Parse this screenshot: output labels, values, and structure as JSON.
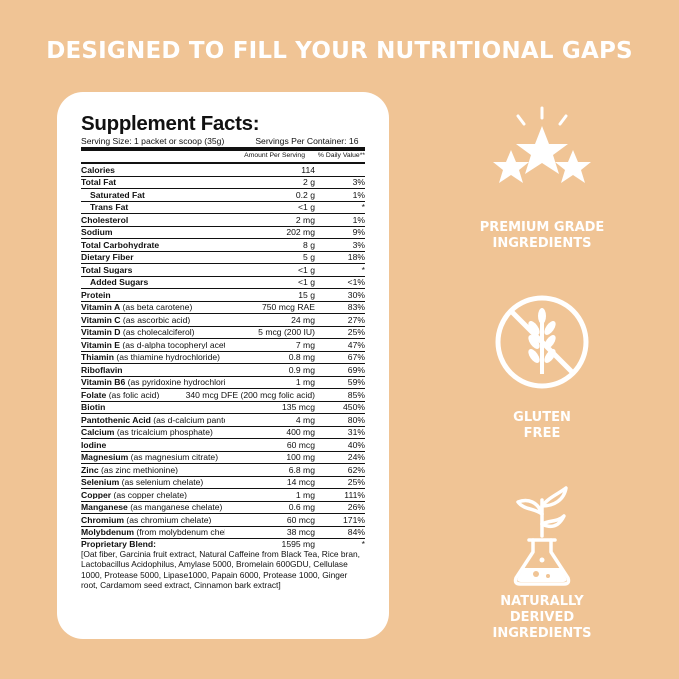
{
  "headline": "DESIGNED TO FILL YOUR NUTRITIONAL GAPS",
  "facts": {
    "title": "Supplement Facts:",
    "serving_size": "Serving Size: 1 packet or scoop (35g)",
    "servings_per_container": "Servings Per Container: 16",
    "col_amount": "Amount Per Serving",
    "col_dv": "% Daily Value**",
    "rows": [
      {
        "name": "Calories",
        "sub": "",
        "amount": "114",
        "dv": "",
        "bold": true,
        "indent": false,
        "amt_wide": false
      },
      {
        "name": "Total Fat",
        "sub": "",
        "amount": "2 g",
        "dv": "3%",
        "bold": true,
        "indent": false
      },
      {
        "name": "Saturated Fat",
        "sub": "",
        "amount": "0.2 g",
        "dv": "1%",
        "bold": true,
        "indent": true
      },
      {
        "name": "Trans Fat",
        "sub": "",
        "amount": "<1 g",
        "dv": "*",
        "bold": true,
        "indent": true
      },
      {
        "name": "Cholesterol",
        "sub": "",
        "amount": "2 mg",
        "dv": "1%",
        "bold": true,
        "indent": false
      },
      {
        "name": "Sodium",
        "sub": "",
        "amount": "202 mg",
        "dv": "9%",
        "bold": true,
        "indent": false
      },
      {
        "name": "Total Carbohydrate",
        "sub": "",
        "amount": "8 g",
        "dv": "3%",
        "bold": true,
        "indent": false
      },
      {
        "name": "Dietary Fiber",
        "sub": "",
        "amount": "5 g",
        "dv": "18%",
        "bold": true,
        "indent": false
      },
      {
        "name": "Total Sugars",
        "sub": "",
        "amount": "<1 g",
        "dv": "*",
        "bold": true,
        "indent": false
      },
      {
        "name": "Added Sugars",
        "sub": "",
        "amount": "<1 g",
        "dv": "<1%",
        "bold": true,
        "indent": true
      },
      {
        "name": "Protein",
        "sub": "",
        "amount": "15 g",
        "dv": "30%",
        "bold": true,
        "indent": false
      },
      {
        "name": "Vitamin A",
        "sub": " (as beta carotene)",
        "amount": "750 mcg RAE",
        "dv": "83%",
        "bold": true,
        "indent": false
      },
      {
        "name": "Vitamin C",
        "sub": " (as ascorbic acid)",
        "amount": "24 mg",
        "dv": "27%",
        "bold": true,
        "indent": false
      },
      {
        "name": "Vitamin D",
        "sub": " (as cholecalciferol)",
        "amount": "5 mcg (200 IU)",
        "dv": "25%",
        "bold": true,
        "indent": false
      },
      {
        "name": "Vitamin E",
        "sub": " (as d-alpha tocopheryl acetate)",
        "amount": "7 mg",
        "dv": "47%",
        "bold": true,
        "indent": false
      },
      {
        "name": "Thiamin",
        "sub": " (as thiamine hydrochloride)",
        "amount": "0.8 mg",
        "dv": "67%",
        "bold": true,
        "indent": false
      },
      {
        "name": "Riboflavin",
        "sub": "",
        "amount": "0.9 mg",
        "dv": "69%",
        "bold": true,
        "indent": false
      },
      {
        "name": "Vitamin B6",
        "sub": " (as pyridoxine hydrochloride)",
        "amount": "1 mg",
        "dv": "59%",
        "bold": true,
        "indent": false
      },
      {
        "name": "Folate",
        "sub": " (as folic acid)",
        "amount": "340 mcg DFE (200 mcg folic acid)",
        "dv": "85%",
        "bold": true,
        "indent": false
      },
      {
        "name": "Biotin",
        "sub": "",
        "amount": "135 mcg",
        "dv": "450%",
        "bold": true,
        "indent": false
      },
      {
        "name": "Pantothenic Acid",
        "sub": " (as d-calcium pantothenate)",
        "amount": "4 mg",
        "dv": "80%",
        "bold": true,
        "indent": false
      },
      {
        "name": "Calcium",
        "sub": " (as tricalcium phosphate)",
        "amount": "400 mg",
        "dv": "31%",
        "bold": true,
        "indent": false
      },
      {
        "name": "Iodine",
        "sub": "",
        "amount": "60 mcg",
        "dv": "40%",
        "bold": true,
        "indent": false
      },
      {
        "name": "Magnesium",
        "sub": " (as magnesium citrate)",
        "amount": "100 mg",
        "dv": "24%",
        "bold": true,
        "indent": false
      },
      {
        "name": "Zinc",
        "sub": " (as zinc methionine)",
        "amount": "6.8 mg",
        "dv": "62%",
        "bold": true,
        "indent": false
      },
      {
        "name": "Selenium",
        "sub": " (as selenium chelate)",
        "amount": "14 mcg",
        "dv": "25%",
        "bold": true,
        "indent": false
      },
      {
        "name": "Copper",
        "sub": " (as copper chelate)",
        "amount": "1 mg",
        "dv": "111%",
        "bold": true,
        "indent": false
      },
      {
        "name": "Manganese",
        "sub": " (as manganese chelate)",
        "amount": "0.6 mg",
        "dv": "26%",
        "bold": true,
        "indent": false
      },
      {
        "name": "Chromium",
        "sub": " (as chromium chelate)",
        "amount": "60 mcg",
        "dv": "171%",
        "bold": true,
        "indent": false
      },
      {
        "name": "Molybdenum",
        "sub": " (from molybdenum chelate)",
        "amount": "38 mcg",
        "dv": "84%",
        "bold": true,
        "indent": false
      }
    ],
    "blend_name": "Proprietary Blend:",
    "blend_amount": "1595 mg",
    "blend_dv": "*",
    "blend_text": "[Oat fiber, Garcinia fruit extract, Natural Caffeine from Black Tea, Rice bran, Lactobacillus Acidophilus, Amylase 5000, Bromelain 600GDU, Cellulase 1000, Protease 5000, Lipase1000, Papain 6000, Protease 1000, Ginger root, Cardamom seed extract, Cinnamon bark extract]"
  },
  "features": [
    {
      "icon": "stars-icon",
      "line1": "PREMIUM GRADE",
      "line2": "INGREDIENTS"
    },
    {
      "icon": "gluten-free-icon",
      "line1": "GLUTEN",
      "line2": "FREE"
    },
    {
      "icon": "plant-flask-icon",
      "line1": "NATURALLY",
      "line2": "DERIVED INGREDIENTS"
    }
  ],
  "colors": {
    "background": "#f0c495",
    "panel": "#ffffff",
    "text": "#111111",
    "accent": "#ffffff"
  }
}
